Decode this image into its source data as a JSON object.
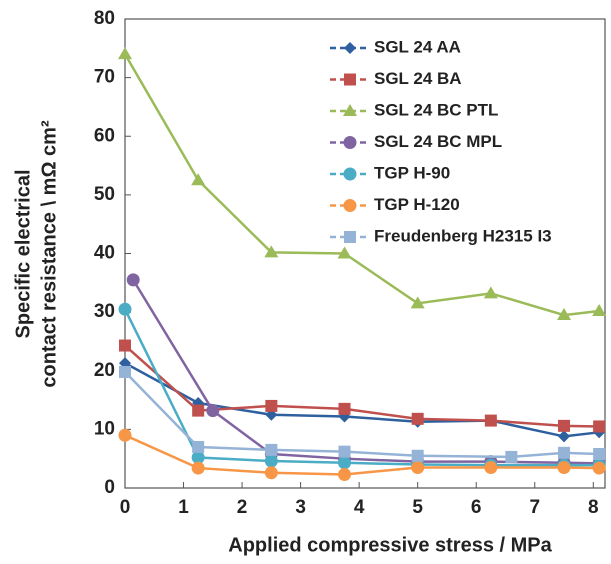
{
  "chart_data": {
    "type": "line",
    "x_label": "Applied compressive stress / MPa",
    "y_label": [
      "Specific electrical",
      "contact resistance \\ mΩ cm²"
    ],
    "x": [
      0,
      1.25,
      2.5,
      3.75,
      5,
      6.25,
      7.5,
      8.1
    ],
    "xlim": [
      0,
      8.2
    ],
    "xticks": [
      0,
      1,
      2,
      3,
      4,
      5,
      6,
      7,
      8
    ],
    "ylim": [
      0,
      80
    ],
    "yticks": [
      0,
      10,
      20,
      30,
      40,
      50,
      60,
      70,
      80
    ],
    "legend": "upper-right",
    "series": [
      {
        "name": "SGL 24 AA",
        "color": "#2e5f9e",
        "marker": "diamond",
        "values": [
          21.3,
          14.5,
          12.5,
          12.2,
          11.3,
          11.5,
          8.8,
          9.5
        ]
      },
      {
        "name": "SGL 24 BA",
        "color": "#c0504d",
        "marker": "square",
        "values": [
          24.3,
          13.2,
          14,
          13.5,
          11.8,
          11.5,
          10.6,
          10.5
        ]
      },
      {
        "name": "SGL 24 BC PTL",
        "color": "#9bbb59",
        "marker": "triangle",
        "values": [
          74,
          52.5,
          40.2,
          40,
          31.5,
          33.2,
          29.5,
          30.2
        ]
      },
      {
        "name": "SGL 24 BC MPL",
        "color": "#8064a2",
        "marker": "circle",
        "x": [
          0.14,
          1.5,
          2.5,
          3.75,
          5,
          6.25,
          7.5,
          8.1
        ],
        "values": [
          35.5,
          13.2,
          5.8,
          5.0,
          4.5,
          4.5,
          4.3,
          4.2
        ]
      },
      {
        "name": "TGP H-90",
        "color": "#4bacc6",
        "marker": "circle",
        "values": [
          30.5,
          5.2,
          4.6,
          4.3,
          4.0,
          3.9,
          3.9,
          3.9
        ]
      },
      {
        "name": "TGP H-120",
        "color": "#f79646",
        "marker": "circle",
        "values": [
          9,
          3.4,
          2.6,
          2.3,
          3.5,
          3.5,
          3.5,
          3.4
        ]
      },
      {
        "name": "Freudenberg H2315 I3",
        "color": "#95b3d7",
        "marker": "square",
        "x": [
          0,
          1.25,
          2.5,
          3.75,
          5,
          6.6,
          7.5,
          8.1
        ],
        "values": [
          19.8,
          7,
          6.5,
          6.2,
          5.5,
          5.3,
          6,
          5.8
        ]
      }
    ]
  }
}
